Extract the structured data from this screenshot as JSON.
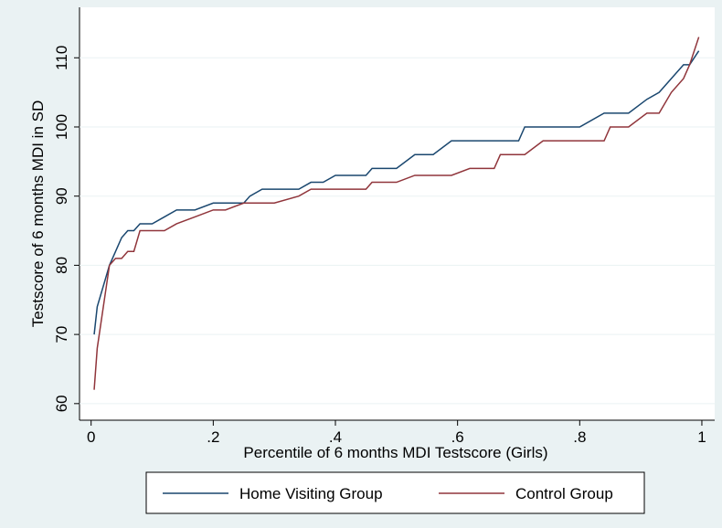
{
  "chart_data": {
    "type": "line",
    "x_label": "Percentile of 6 months MDI Testscore (Girls)",
    "y_label": "Testscore of 6 months MDI in SD",
    "x": [
      0.005,
      0.01,
      0.02,
      0.03,
      0.04,
      0.05,
      0.06,
      0.07,
      0.08,
      0.1,
      0.12,
      0.14,
      0.17,
      0.2,
      0.22,
      0.25,
      0.26,
      0.28,
      0.3,
      0.34,
      0.36,
      0.38,
      0.4,
      0.45,
      0.46,
      0.5,
      0.53,
      0.56,
      0.59,
      0.62,
      0.66,
      0.67,
      0.7,
      0.71,
      0.74,
      0.8,
      0.84,
      0.85,
      0.88,
      0.91,
      0.93,
      0.95,
      0.97,
      0.98,
      0.995
    ],
    "series": [
      {
        "name": "Home Visiting Group",
        "color": "#1a476f",
        "values": [
          70,
          74,
          77,
          80,
          82,
          84,
          85,
          85,
          86,
          86,
          87,
          88,
          88,
          89,
          89,
          89,
          90,
          91,
          91,
          91,
          92,
          92,
          93,
          93,
          94,
          94,
          96,
          96,
          98,
          98,
          98,
          98,
          98,
          100,
          100,
          100,
          102,
          102,
          102,
          104,
          105,
          107,
          109,
          109,
          111
        ]
      },
      {
        "name": "Control Group",
        "color": "#90353b",
        "values": [
          62,
          68,
          74,
          80,
          81,
          81,
          82,
          82,
          85,
          85,
          85,
          86,
          87,
          88,
          88,
          89,
          89,
          89,
          89,
          90,
          91,
          91,
          91,
          91,
          92,
          92,
          93,
          93,
          93,
          94,
          94,
          96,
          96,
          96,
          98,
          98,
          98,
          100,
          100,
          102,
          102,
          105,
          107,
          109,
          113
        ]
      }
    ],
    "xlim": [
      -0.019,
      1.021
    ],
    "ylim": [
      57.6,
      117.3
    ],
    "xticks": [
      0,
      {
        "value": 0.2,
        "label": ".2"
      },
      {
        "value": 0.4,
        "label": ".4"
      },
      {
        "value": 0.6,
        "label": ".6"
      },
      {
        "value": 0.8,
        "label": ".8"
      },
      1
    ],
    "yticks": [
      60,
      70,
      80,
      90,
      100,
      110
    ],
    "grid": true,
    "legend": "bottom"
  }
}
